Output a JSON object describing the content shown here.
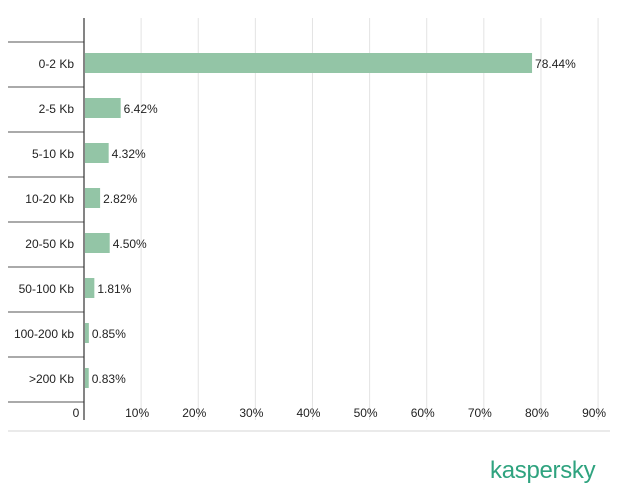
{
  "chart_data": {
    "type": "bar",
    "orientation": "horizontal",
    "categories": [
      "0-2 Kb",
      "2-5 Kb",
      "5-10 Kb",
      "10-20 Kb",
      "20-50 Kb",
      "50-100 Kb",
      "100-200 kb",
      ">200 Kb"
    ],
    "values": [
      78.44,
      6.42,
      4.32,
      2.82,
      4.5,
      1.81,
      0.85,
      0.83
    ],
    "value_labels": [
      "78.44%",
      "6.42%",
      "4.32%",
      "2.82%",
      "4.50%",
      "1.81%",
      "0.85%",
      "0.83%"
    ],
    "x_ticks": [
      0,
      10,
      20,
      30,
      40,
      50,
      60,
      70,
      80,
      90
    ],
    "x_tick_labels": [
      "0",
      "10%",
      "20%",
      "30%",
      "40%",
      "50%",
      "60%",
      "70%",
      "80%",
      "90%"
    ],
    "xlim": [
      0,
      90
    ],
    "title": "",
    "xlabel": "",
    "ylabel": "",
    "grid": true,
    "legend": "none",
    "bar_color": "#93c5a6"
  },
  "brand": {
    "logo_text": "kaspersky",
    "color": "#2fa37f"
  }
}
